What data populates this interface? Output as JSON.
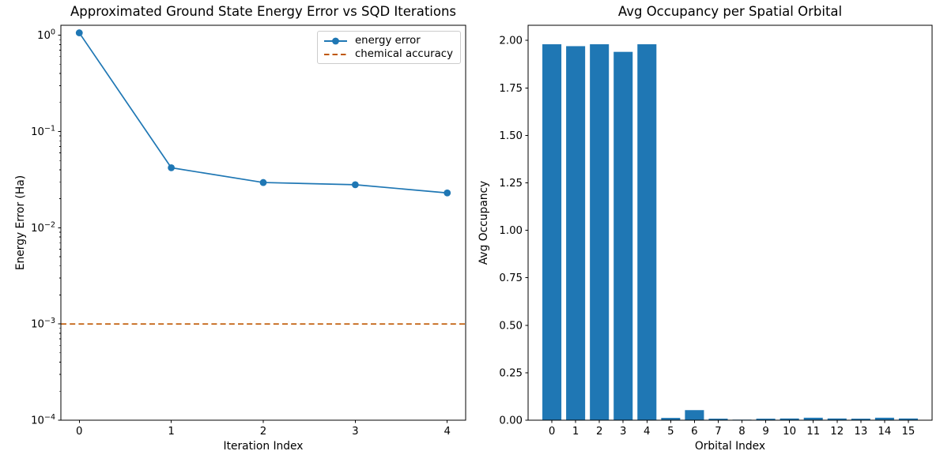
{
  "figure": {
    "background_color": "#ffffff"
  },
  "colors": {
    "series_blue": "#1f77b4",
    "chemical_accuracy_orange": "#BF5700",
    "text": "#000000",
    "axis": "#000000",
    "legend_border": "#cccccc"
  },
  "chart_data": [
    {
      "type": "line",
      "title": "Approximated Ground State Energy Error vs SQD Iterations",
      "xlabel": "Iteration Index",
      "ylabel": "Energy Error (Ha)",
      "yscale": "log",
      "x": [
        0,
        1,
        2,
        3,
        4
      ],
      "series": [
        {
          "name": "energy error",
          "values": [
            1.06,
            0.042,
            0.0295,
            0.028,
            0.023
          ],
          "color": "#1f77b4",
          "marker": "circle",
          "style": "solid"
        }
      ],
      "reference_line": {
        "label": "chemical accuracy",
        "value": 0.001,
        "color": "#BF5700",
        "style": "dashed"
      },
      "xlim": [
        -0.2,
        4.2
      ],
      "ylim": [
        0.0001,
        1.27
      ],
      "xtick_labels": [
        "0",
        "1",
        "2",
        "3",
        "4"
      ],
      "ytick_exponents": [
        0,
        -1,
        -2,
        -3,
        -4
      ],
      "ytick_labels": [
        "10⁰",
        "10⁻¹",
        "10⁻²",
        "10⁻³",
        "10⁻⁴"
      ],
      "grid": false,
      "legend_position": "upper right"
    },
    {
      "type": "bar",
      "title": "Avg Occupancy per Spatial Orbital",
      "xlabel": "Orbital Index",
      "ylabel": "Avg Occupancy",
      "categories": [
        "0",
        "1",
        "2",
        "3",
        "4",
        "5",
        "6",
        "7",
        "8",
        "9",
        "10",
        "11",
        "12",
        "13",
        "14",
        "15"
      ],
      "values": [
        1.98,
        1.97,
        1.98,
        1.94,
        1.98,
        0.012,
        0.053,
        0.008,
        0.003,
        0.008,
        0.009,
        0.013,
        0.009,
        0.008,
        0.013,
        0.009
      ],
      "bar_color": "#1f77b4",
      "xlim": [
        -1.0,
        16.0
      ],
      "ylim": [
        0,
        2.08
      ],
      "ytick_values": [
        0,
        0.25,
        0.5,
        0.75,
        1.0,
        1.25,
        1.5,
        1.75,
        2.0
      ],
      "ytick_labels": [
        "0.00",
        "0.25",
        "0.50",
        "0.75",
        "1.00",
        "1.25",
        "1.50",
        "1.75",
        "2.00"
      ],
      "grid": false
    }
  ]
}
